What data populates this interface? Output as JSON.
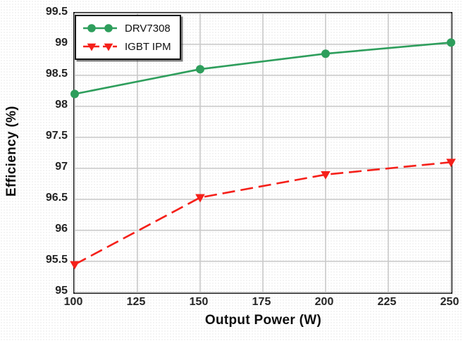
{
  "figure": {
    "background": "#ffffff",
    "grid_color": "#c9c9c9",
    "axis_color": "#1a1a1a",
    "tick_text_color": "#242424"
  },
  "chart_data": {
    "type": "line",
    "title": "",
    "xlabel": "Output Power (W)",
    "ylabel": "Efficiency (%)",
    "xlim": [
      100,
      250
    ],
    "ylim": [
      95,
      99.5
    ],
    "xticks": [
      100,
      125,
      150,
      175,
      200,
      225,
      250
    ],
    "yticks": [
      95,
      95.5,
      96,
      96.5,
      97,
      97.5,
      98,
      98.5,
      99,
      99.5
    ],
    "grid": true,
    "legend_position": "top-left",
    "x": [
      100,
      150,
      200,
      250
    ],
    "series": [
      {
        "name": "DRV7308",
        "values": [
          98.2,
          98.6,
          98.85,
          99.03
        ],
        "color": "#2E9E5C",
        "line_style": "solid",
        "marker": "circle"
      },
      {
        "name": "IGBT IPM",
        "values": [
          95.45,
          96.53,
          96.9,
          97.1
        ],
        "color": "#F5201A",
        "line_style": "dashed",
        "marker": "triangle-down"
      }
    ]
  }
}
